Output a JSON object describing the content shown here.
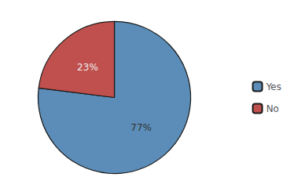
{
  "chart_data": {
    "type": "pie",
    "categories": [
      "Yes",
      "No"
    ],
    "values": [
      77,
      23
    ],
    "value_labels": [
      "77%",
      "23%"
    ],
    "colors": [
      "#5B8DB8",
      "#C0504D"
    ],
    "data_labels": true,
    "legend": "right"
  }
}
